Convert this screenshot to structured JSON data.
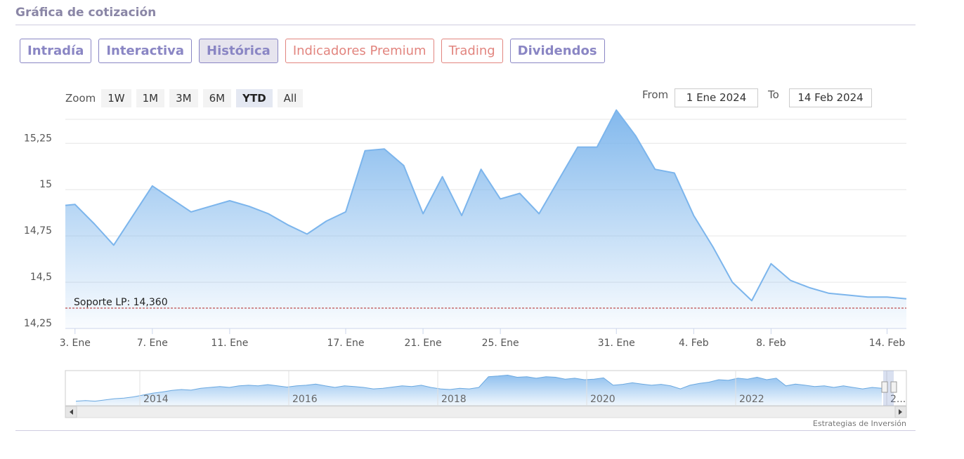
{
  "header": {
    "title": "Gráfica de cotización"
  },
  "tabs": [
    {
      "label": "Intradía",
      "style": "purple",
      "active": false
    },
    {
      "label": "Interactiva",
      "style": "purple",
      "active": false
    },
    {
      "label": "Histórica",
      "style": "purple",
      "active": true
    },
    {
      "label": "Indicadores Premium",
      "style": "red",
      "active": false
    },
    {
      "label": "Trading",
      "style": "red",
      "active": false
    },
    {
      "label": "Dividendos",
      "style": "purple",
      "active": false
    }
  ],
  "zoom": {
    "label": "Zoom",
    "buttons": [
      {
        "label": "1W",
        "active": false
      },
      {
        "label": "1M",
        "active": false
      },
      {
        "label": "3M",
        "active": false
      },
      {
        "label": "6M",
        "active": false
      },
      {
        "label": "YTD",
        "active": true
      },
      {
        "label": "All",
        "active": false
      }
    ]
  },
  "range": {
    "from_label": "From",
    "from_value": "1 Ene 2024",
    "to_label": "To",
    "to_value": "14 Feb 2024"
  },
  "credit": "Estrategias de Inversión",
  "colors": {
    "accent": "#8a86c4",
    "premium": "#e2857f",
    "line": "#7cb5ec",
    "support": "#b22222"
  },
  "chart_data": {
    "type": "area",
    "title": "",
    "xlabel": "",
    "ylabel": "",
    "ylim": [
      14.25,
      15.38
    ],
    "ytick_values": [
      14.25,
      14.5,
      14.75,
      15,
      15.25
    ],
    "ytick_labels": [
      "14,25",
      "14,5",
      "14,75",
      "15",
      "15,25"
    ],
    "xtick_days": [
      3,
      7,
      11,
      17,
      21,
      25,
      31,
      35,
      39,
      45
    ],
    "xtick_labels": [
      "3. Ene",
      "7. Ene",
      "11. Ene",
      "17. Ene",
      "21. Ene",
      "25. Ene",
      "31. Ene",
      "4. Feb",
      "8. Feb",
      "14. Feb"
    ],
    "xlim_days": [
      2.5,
      46.0
    ],
    "grid": true,
    "series": [
      {
        "x_days": [
          2.5,
          3,
          4,
          5,
          6,
          7,
          8,
          9,
          10,
          11,
          12,
          13,
          14,
          15,
          16,
          17,
          18,
          19,
          20,
          21,
          22,
          23,
          24,
          25,
          26,
          27,
          28,
          29,
          30,
          31,
          32,
          33,
          34,
          35,
          36,
          37,
          38,
          39,
          40,
          41,
          42,
          43,
          44,
          45,
          46
        ],
        "values": [
          14.915,
          14.92,
          14.815,
          14.7,
          14.86,
          15.02,
          14.95,
          14.88,
          14.91,
          14.94,
          14.91,
          14.87,
          14.81,
          14.76,
          14.83,
          14.88,
          15.21,
          15.22,
          15.13,
          14.87,
          15.07,
          14.86,
          15.11,
          14.95,
          14.98,
          14.87,
          15.05,
          15.23,
          15.23,
          15.43,
          15.29,
          15.11,
          15.09,
          14.86,
          14.69,
          14.5,
          14.4,
          14.6,
          14.51,
          14.47,
          14.44,
          14.43,
          14.42,
          14.42,
          14.41
        ]
      }
    ],
    "annotations": [
      {
        "type": "hline",
        "value": 14.36,
        "label": "Soporte LP: 14,360"
      }
    ],
    "navigator": {
      "year_labels": [
        "2014",
        "2016",
        "2018",
        "2020",
        "2022",
        "2..."
      ],
      "profile": [
        0.1,
        0.12,
        0.1,
        0.14,
        0.18,
        0.2,
        0.24,
        0.3,
        0.36,
        0.4,
        0.45,
        0.48,
        0.46,
        0.52,
        0.55,
        0.58,
        0.55,
        0.6,
        0.62,
        0.6,
        0.64,
        0.6,
        0.56,
        0.6,
        0.62,
        0.66,
        0.6,
        0.55,
        0.6,
        0.58,
        0.55,
        0.5,
        0.52,
        0.56,
        0.6,
        0.58,
        0.62,
        0.55,
        0.5,
        0.48,
        0.52,
        0.5,
        0.55,
        0.9,
        0.92,
        0.95,
        0.88,
        0.9,
        0.85,
        0.9,
        0.88,
        0.82,
        0.85,
        0.8,
        0.82,
        0.86,
        0.62,
        0.65,
        0.7,
        0.66,
        0.62,
        0.65,
        0.6,
        0.5,
        0.62,
        0.68,
        0.72,
        0.8,
        0.78,
        0.85,
        0.82,
        0.88,
        0.8,
        0.85,
        0.6,
        0.66,
        0.62,
        0.58,
        0.6,
        0.55,
        0.6,
        0.55,
        0.5,
        0.55,
        0.52
      ]
    }
  }
}
